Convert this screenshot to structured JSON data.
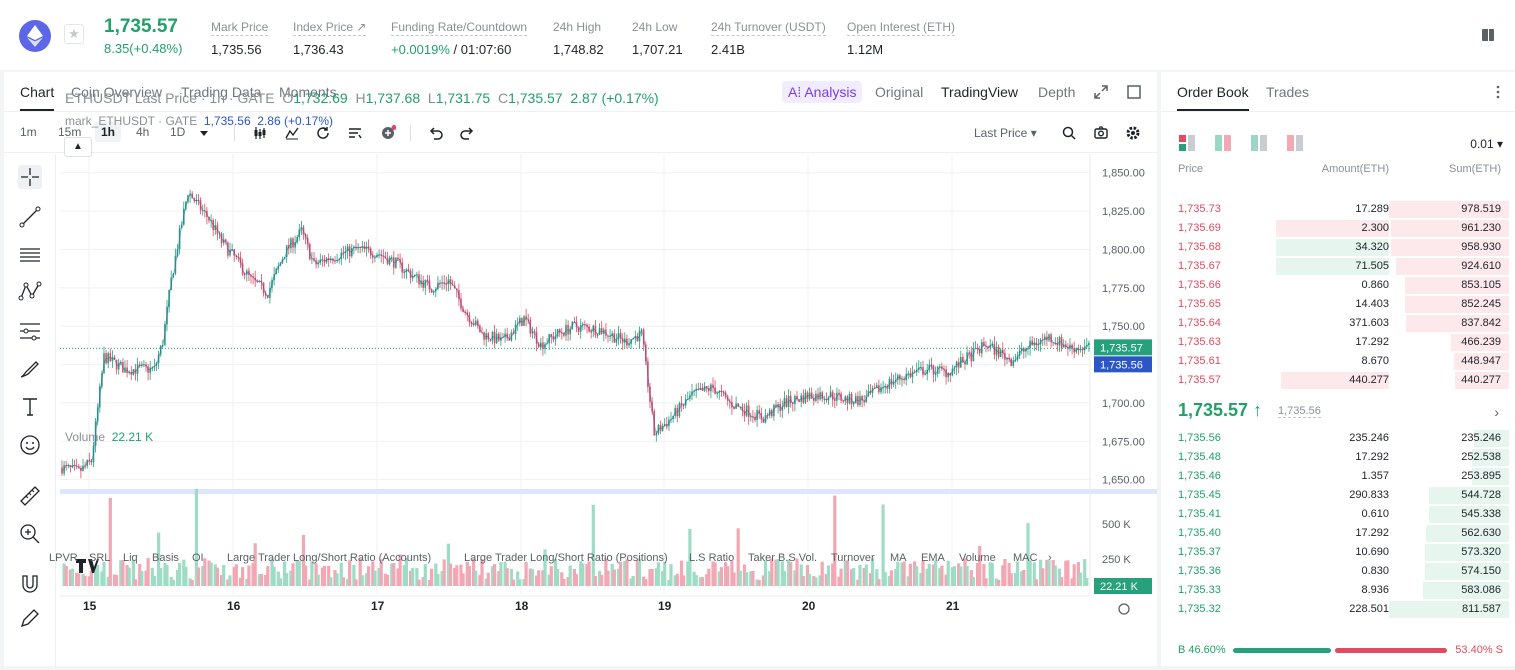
{
  "header": {
    "symbol_icon": "ethereum-icon",
    "last_price": "1,735.57",
    "change": "8.35(+0.48%)",
    "stats": [
      {
        "label": "Mark Price",
        "value": "1,735.56"
      },
      {
        "label": "Index Price ↗",
        "value": "1,736.43"
      },
      {
        "label": "Funding Rate/Countdown",
        "value_green": "+0.0019%",
        "value_rest": " / 01:07:60"
      },
      {
        "label": "24h High",
        "value": "1,748.82"
      },
      {
        "label": "24h Low",
        "value": "1,707.21"
      },
      {
        "label": "24h Turnover (USDT)",
        "value": "2.41B"
      },
      {
        "label": "Open Interest (ETH)",
        "value": "1.12M"
      }
    ]
  },
  "chart_tabs": {
    "left": [
      "Chart",
      "Coin Overview",
      "Trading Data",
      "Moments"
    ],
    "ai": "A⁞ Analysis",
    "right": [
      "Original",
      "TradingView",
      "Depth"
    ]
  },
  "toolbar": {
    "timeframes": [
      "1m",
      "15m",
      "1h",
      "4h",
      "1D"
    ],
    "active_timeframe": "1h",
    "price_type": "Last Price ▾"
  },
  "legend": {
    "main_prefix": "ETHUSDT Last Price · 1h · GATE",
    "o_label": "O",
    "o": "1,732.69",
    "h_label": "H",
    "h": "1,737.68",
    "l_label": "L",
    "l": "1,731.75",
    "c_label": "C",
    "c": "1,735.57",
    "chg": "2.87 (+0.17%)",
    "mark_prefix": "mark_ETHUSDT · GATE",
    "mark_val": "1,735.56",
    "mark_chg": "2.86 (+0.17%)",
    "volume_label": "Volume",
    "volume_val": "22.21 K"
  },
  "chart_data": {
    "type": "candlestick",
    "x_ticks": [
      "15",
      "16",
      "17",
      "18",
      "19",
      "20",
      "21"
    ],
    "y_ticks": [
      "1,850.00",
      "1,825.00",
      "1,800.00",
      "1,775.00",
      "1,750.00",
      "1,725.00",
      "1,700.00",
      "1,675.00",
      "1,650.00"
    ],
    "ylim": [
      1640,
      1857
    ],
    "last_price_tag": "1,735.57",
    "mark_price_tag": "1,735.56",
    "volume_ticks": [
      "500 K",
      "250 K"
    ],
    "volume_tag": "22.21 K",
    "colors": {
      "up": "#26a17b",
      "down": "#e04b5f",
      "mark": "#2a56c6"
    }
  },
  "indicators": [
    "LPVR",
    "SRL",
    "Liq",
    "Basis",
    "OI",
    "Large Trader Long/Short Ratio (Accounts)",
    "Large Trader Long/Short Ratio (Positions)",
    "L.S Ratio",
    "Taker B.S Vol.",
    "Turnover",
    "MA",
    "EMA",
    "Volume",
    "MACD"
  ],
  "orderbook": {
    "tabs": [
      "Order Book",
      "Trades"
    ],
    "precision": "0.01 ▾",
    "headers": [
      "Price",
      "Amount(ETH)",
      "Sum(ETH)"
    ],
    "asks": [
      {
        "p": "1,735.73",
        "a": "17.289",
        "s": "978.519",
        "af": 0,
        "sf": 1.0
      },
      {
        "p": "1,735.69",
        "a": "2.300",
        "s": "961.230",
        "af": 0.47,
        "sf": 0.98
      },
      {
        "p": "1,735.68",
        "a": "34.320",
        "s": "958.930",
        "af": 0.47,
        "sf": 0.98
      },
      {
        "p": "1,735.67",
        "a": "71.505",
        "s": "924.610",
        "af": 0.47,
        "sf": 0.94
      },
      {
        "p": "1,735.66",
        "a": "0.860",
        "s": "853.105",
        "af": 0,
        "sf": 0.87
      },
      {
        "p": "1,735.65",
        "a": "14.403",
        "s": "852.245",
        "af": 0,
        "sf": 0.87
      },
      {
        "p": "1,735.64",
        "a": "371.603",
        "s": "837.842",
        "af": 0,
        "sf": 0.86
      },
      {
        "p": "1,735.63",
        "a": "17.292",
        "s": "466.239",
        "af": 0,
        "sf": 0.48
      },
      {
        "p": "1,735.61",
        "a": "8.670",
        "s": "448.947",
        "af": 0,
        "sf": 0.46
      },
      {
        "p": "1,735.57",
        "a": "440.277",
        "s": "440.277",
        "af": 0.45,
        "sf": 0.45
      }
    ],
    "ask_tint_green": [
      2,
      3
    ],
    "mid_price": "1,735.57 ↑",
    "mid_mark": "1,735.56",
    "bids": [
      {
        "p": "1,735.56",
        "a": "235.246",
        "s": "235.246",
        "sf": 0.29
      },
      {
        "p": "1,735.48",
        "a": "17.292",
        "s": "252.538",
        "sf": 0.31
      },
      {
        "p": "1,735.46",
        "a": "1.357",
        "s": "253.895",
        "sf": 0.31
      },
      {
        "p": "1,735.45",
        "a": "290.833",
        "s": "544.728",
        "sf": 0.67
      },
      {
        "p": "1,735.41",
        "a": "0.610",
        "s": "545.338",
        "sf": 0.67
      },
      {
        "p": "1,735.40",
        "a": "17.292",
        "s": "562.630",
        "sf": 0.69
      },
      {
        "p": "1,735.37",
        "a": "10.690",
        "s": "573.320",
        "sf": 0.7
      },
      {
        "p": "1,735.36",
        "a": "0.830",
        "s": "574.150",
        "sf": 0.7
      },
      {
        "p": "1,735.33",
        "a": "8.936",
        "s": "583.086",
        "sf": 0.72
      },
      {
        "p": "1,735.32",
        "a": "228.501",
        "s": "811.587",
        "sf": 1.0
      }
    ],
    "buy_ratio": "B 46.60%",
    "sell_ratio": "53.40% S",
    "buy_pct": 46.6
  }
}
